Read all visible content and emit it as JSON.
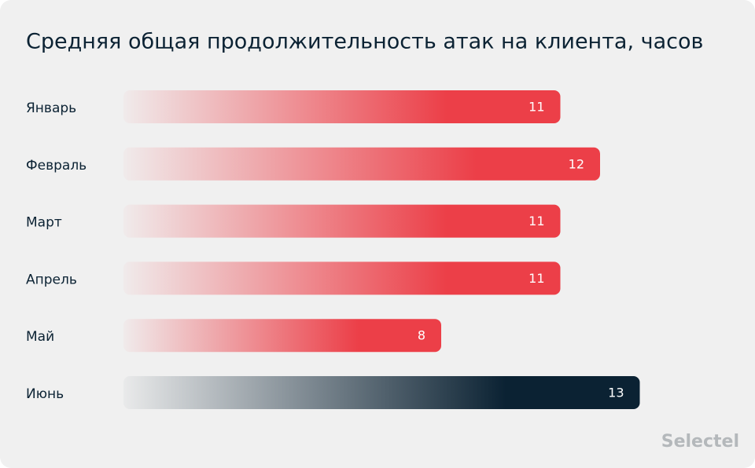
{
  "chart_data": {
    "type": "bar",
    "orientation": "horizontal",
    "title": "Средняя общая продолжительность атак на клиента, часов",
    "categories": [
      "Январь",
      "Февраль",
      "Март",
      "Апрель",
      "Май",
      "Июнь"
    ],
    "values": [
      11,
      12,
      11,
      11,
      8,
      13
    ],
    "colors": [
      "#ec3f48",
      "#ec3f48",
      "#ec3f48",
      "#ec3f48",
      "#ec3f48",
      "#0b2233"
    ]
  },
  "logo": "Selectel"
}
